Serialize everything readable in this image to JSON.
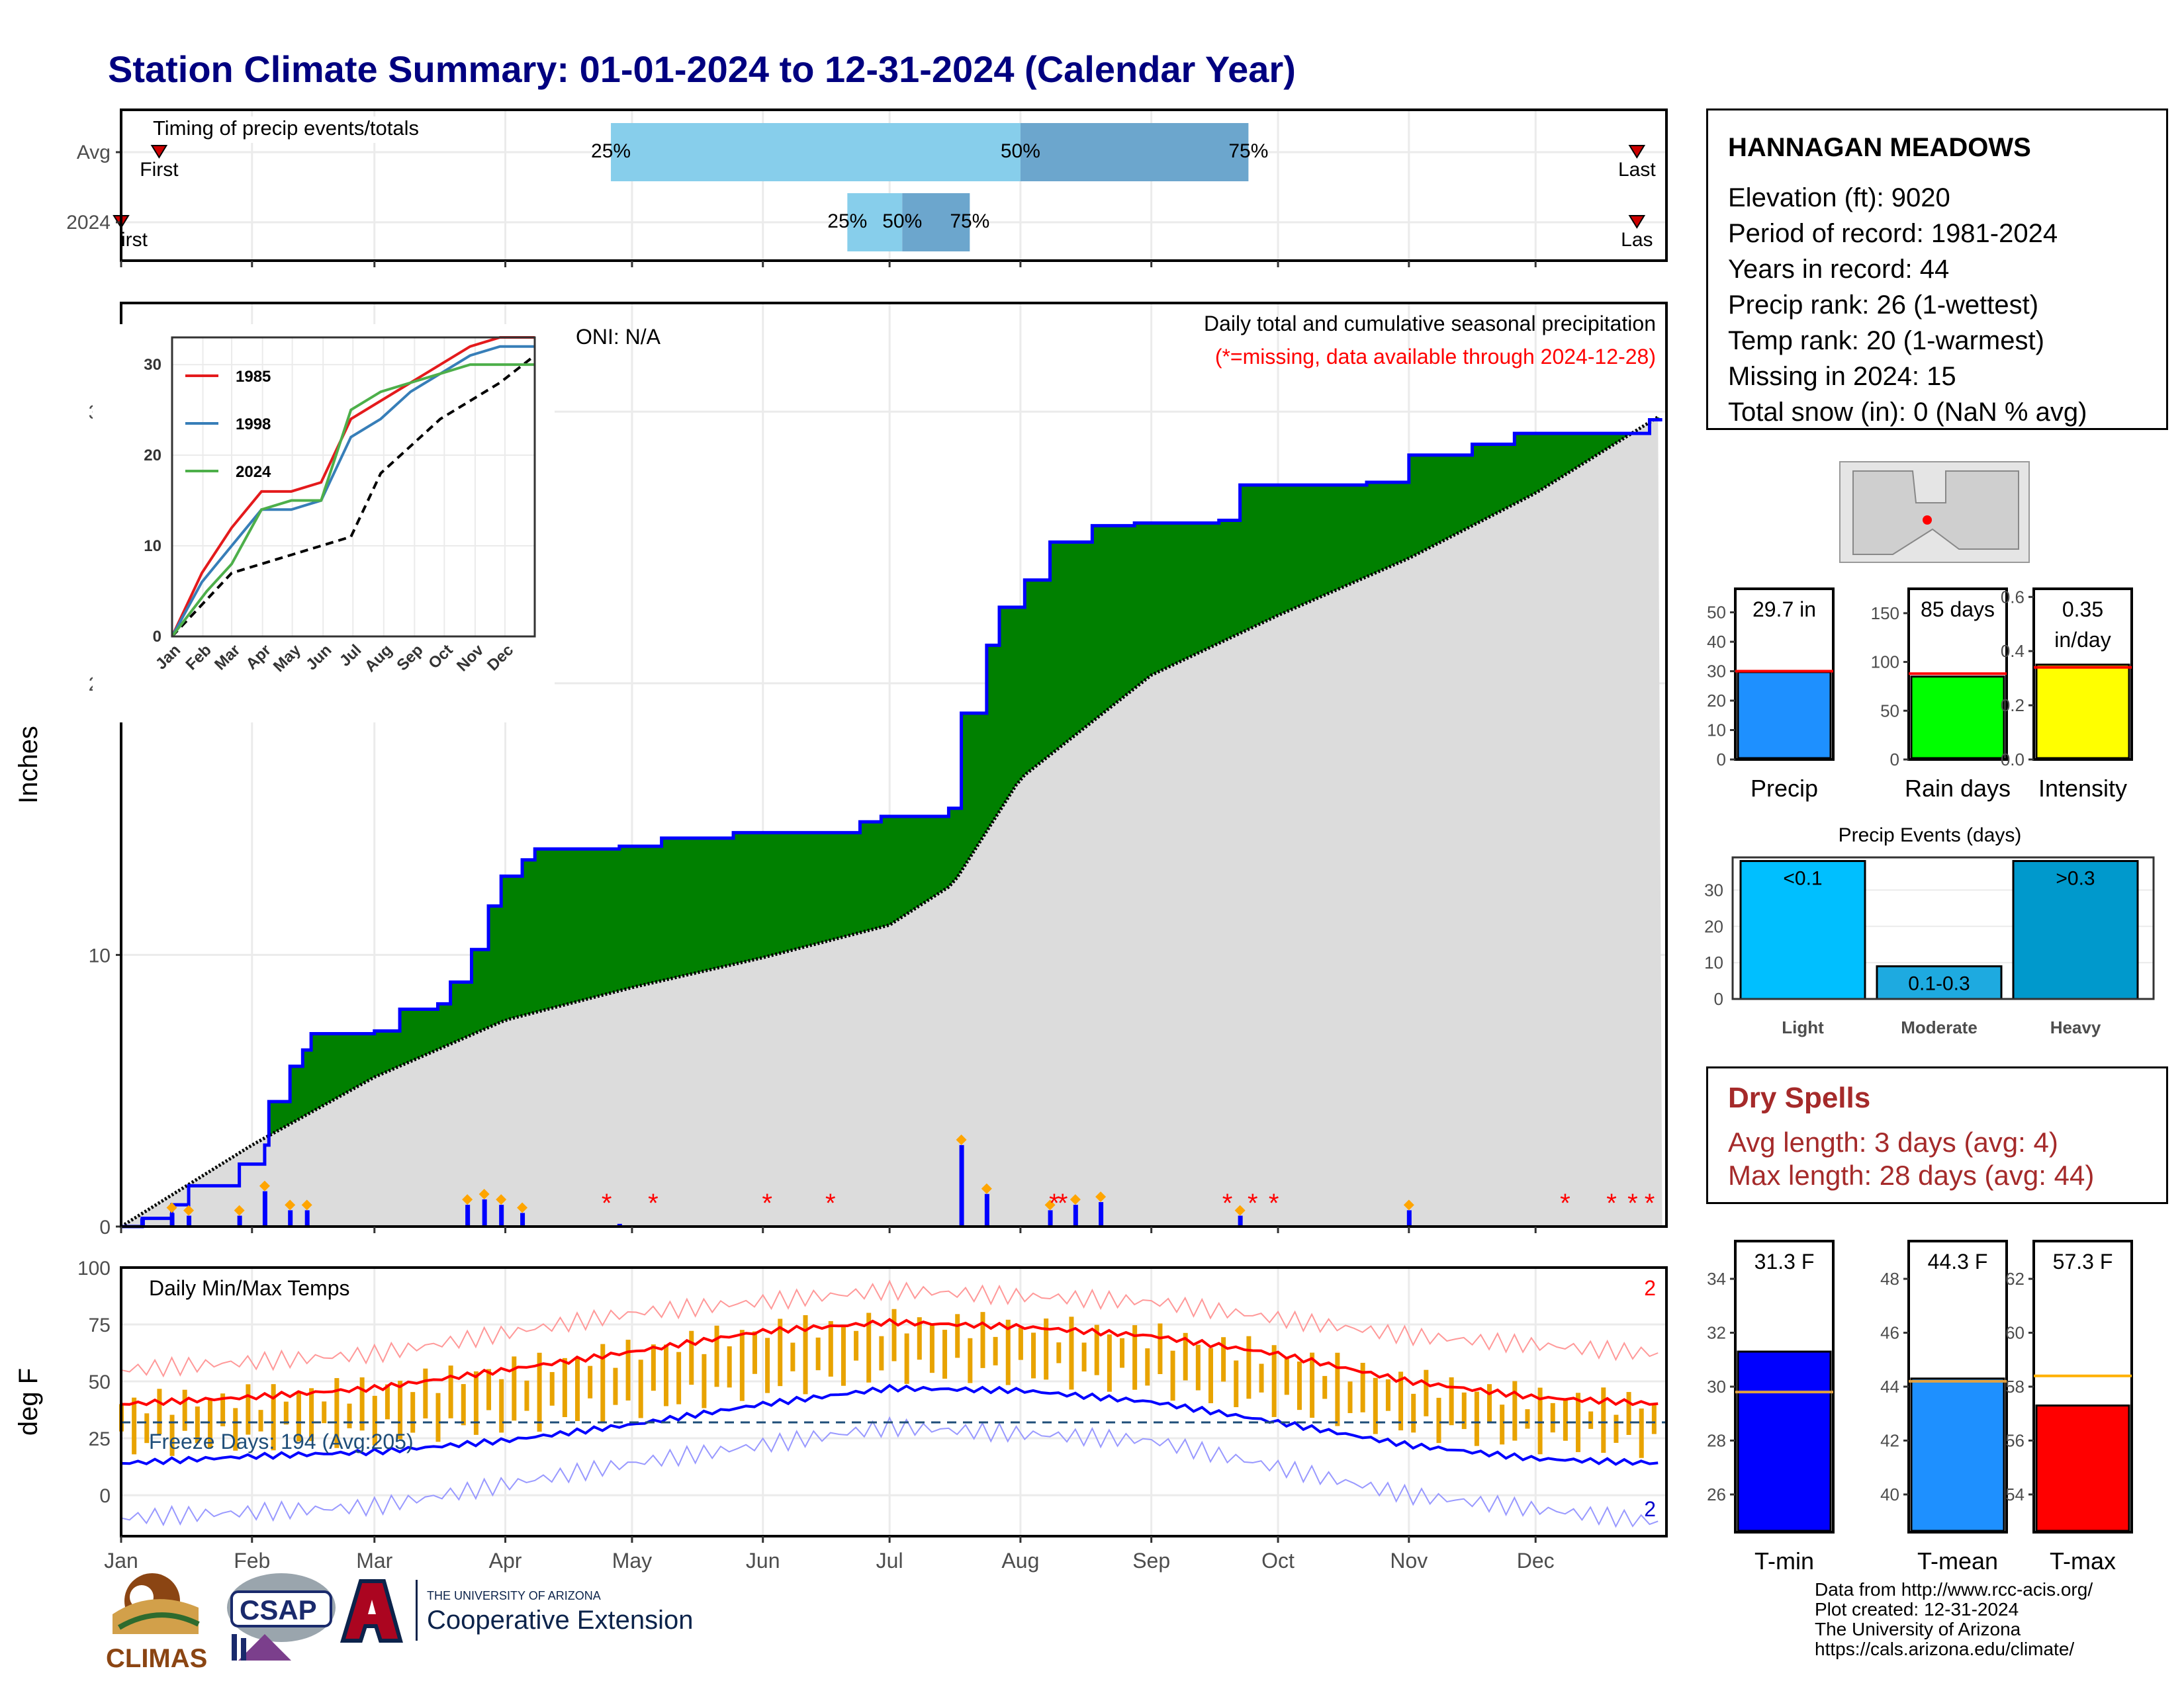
{
  "title": "Station Climate Summary: 01-01-2024 to 12-31-2024 (Calendar Year)",
  "station": {
    "name": "HANNAGAN MEADOWS",
    "lines": [
      "Elevation (ft): 9020",
      "Period of record: 1981-2024",
      "Years in record: 44",
      "Precip rank: 26 (1-wettest)",
      "Temp rank: 20 (1-warmest)",
      "Missing in 2024: 15",
      "Total snow (in): 0 (NaN % avg)"
    ]
  },
  "dry_spells": {
    "title": "Dry Spells",
    "avg": "Avg length: 3 days (avg: 4)",
    "max": "Max length: 28 days (avg: 44)"
  },
  "credits": [
    "Data from http://www.rcc-acis.org/",
    "Plot created: 12-31-2024",
    "The University of Arizona",
    "https://cals.arizona.edu/climate/"
  ],
  "logos": {
    "climas": "CLIMAS",
    "csap": "CSAP",
    "ua_small": "THE UNIVERSITY OF ARIZONA",
    "ua_big": "Cooperative Extension"
  },
  "colors": {
    "navy": "#000080",
    "green": "#008000",
    "blue": "#0000ff",
    "red": "#ff0000",
    "gold": "#e8a300",
    "light_blue": "#87ceeb",
    "mid_blue": "#6ca6cd"
  },
  "chart_data": [
    {
      "type": "bar",
      "id": "timing",
      "title": "Timing of precip events/totals",
      "categories": [
        "Avg",
        "2024"
      ],
      "rows": [
        {
          "label": "Avg",
          "first": "Jan 10",
          "p25": "Apr 26",
          "p50": "Aug 1",
          "p75": "Sep 24",
          "last": "Dec 25",
          "first_label": "First",
          "last_label": "Last",
          "p25_label": "25%",
          "p50_label": "50%",
          "p75_label": "75%"
        },
        {
          "label": "2024",
          "first": "Jan 1",
          "p25": "Jun 21",
          "p50": "Jul 4",
          "p75": "Jul 20",
          "last": "Dec 25",
          "first_label": "irst",
          "last_label": "Las",
          "p25_label": "25%",
          "p50_label": "50%",
          "p75_label": "75%"
        }
      ],
      "xlim": [
        "Jan 1",
        "Dec 31"
      ]
    },
    {
      "type": "area",
      "id": "precip",
      "title": "Daily total and cumulative seasonal precipitation",
      "subtitle": "(*=missing, data available through 2024-12-28)",
      "annotation": "ONI: N/A",
      "ylabel": "Inches",
      "ylim": [
        0,
        34
      ],
      "yticks": [
        0,
        10,
        20,
        30
      ],
      "x_ticks": [
        "Jan",
        "Feb",
        "Mar",
        "Apr",
        "May",
        "Jun",
        "Jul",
        "Aug",
        "Sep",
        "Oct",
        "Nov",
        "Dec"
      ],
      "cumulative_2024": [
        [
          0,
          0
        ],
        [
          5,
          0.3
        ],
        [
          12,
          0.8
        ],
        [
          16,
          1.5
        ],
        [
          28,
          2.3
        ],
        [
          34,
          3.0
        ],
        [
          35,
          4.6
        ],
        [
          40,
          5.9
        ],
        [
          43,
          6.5
        ],
        [
          45,
          7.1
        ],
        [
          60,
          7.2
        ],
        [
          66,
          8.0
        ],
        [
          75,
          8.2
        ],
        [
          78,
          9.0
        ],
        [
          83,
          10.2
        ],
        [
          87,
          11.8
        ],
        [
          90,
          12.9
        ],
        [
          95,
          13.5
        ],
        [
          98,
          13.9
        ],
        [
          118,
          14.0
        ],
        [
          128,
          14.3
        ],
        [
          145,
          14.5
        ],
        [
          170,
          14.5
        ],
        [
          175,
          14.9
        ],
        [
          180,
          15.1
        ],
        [
          196,
          15.4
        ],
        [
          199,
          18.9
        ],
        [
          205,
          21.4
        ],
        [
          208,
          22.8
        ],
        [
          214,
          23.8
        ],
        [
          220,
          25.2
        ],
        [
          230,
          25.8
        ],
        [
          240,
          25.9
        ],
        [
          260,
          26.0
        ],
        [
          265,
          27.3
        ],
        [
          295,
          27.4
        ],
        [
          305,
          28.4
        ],
        [
          320,
          28.8
        ],
        [
          330,
          29.2
        ],
        [
          362,
          29.7
        ]
      ],
      "cumulative_avg": [
        [
          0,
          0
        ],
        [
          31,
          3.0
        ],
        [
          60,
          5.5
        ],
        [
          91,
          7.6
        ],
        [
          121,
          8.8
        ],
        [
          152,
          9.9
        ],
        [
          182,
          11.1
        ],
        [
          197,
          12.6
        ],
        [
          213,
          16.5
        ],
        [
          244,
          20.3
        ],
        [
          274,
          22.5
        ],
        [
          305,
          24.6
        ],
        [
          335,
          27.0
        ],
        [
          365,
          29.9
        ]
      ],
      "daily_bars": [
        [
          5,
          0.3
        ],
        [
          12,
          0.5
        ],
        [
          16,
          0.4
        ],
        [
          28,
          0.4
        ],
        [
          34,
          1.3
        ],
        [
          40,
          0.6
        ],
        [
          44,
          0.6
        ],
        [
          82,
          0.8
        ],
        [
          86,
          1.0
        ],
        [
          90,
          0.8
        ],
        [
          95,
          0.5
        ],
        [
          118,
          0.1
        ],
        [
          199,
          3.0
        ],
        [
          205,
          1.2
        ],
        [
          220,
          0.6
        ],
        [
          226,
          0.8
        ],
        [
          232,
          0.9
        ],
        [
          265,
          0.4
        ],
        [
          305,
          0.6
        ]
      ],
      "missing_days": [
        115,
        126,
        153,
        168,
        221,
        223,
        262,
        268,
        273,
        342,
        353,
        358,
        362
      ]
    },
    {
      "type": "line",
      "id": "inset",
      "series": [
        {
          "name": "1985",
          "color": "#e41a1c",
          "points": [
            [
              0,
              0
            ],
            [
              30,
              7
            ],
            [
              60,
              12
            ],
            [
              90,
              16
            ],
            [
              120,
              16
            ],
            [
              150,
              17
            ],
            [
              180,
              24
            ],
            [
              210,
              26
            ],
            [
              240,
              28
            ],
            [
              270,
              30
            ],
            [
              300,
              32
            ],
            [
              330,
              33
            ],
            [
              365,
              33
            ]
          ]
        },
        {
          "name": "1998",
          "color": "#377eb8",
          "points": [
            [
              0,
              0
            ],
            [
              30,
              6
            ],
            [
              60,
              10
            ],
            [
              90,
              14
            ],
            [
              120,
              14
            ],
            [
              150,
              15
            ],
            [
              180,
              22
            ],
            [
              210,
              24
            ],
            [
              240,
              27
            ],
            [
              270,
              29
            ],
            [
              300,
              31
            ],
            [
              330,
              32
            ],
            [
              365,
              32
            ]
          ]
        },
        {
          "name": "2024",
          "color": "#4daf4a",
          "points": [
            [
              0,
              0
            ],
            [
              35,
              5
            ],
            [
              60,
              8
            ],
            [
              90,
              14
            ],
            [
              120,
              15
            ],
            [
              150,
              15
            ],
            [
              180,
              25
            ],
            [
              210,
              27
            ],
            [
              240,
              28
            ],
            [
              270,
              29
            ],
            [
              300,
              30
            ],
            [
              330,
              30
            ],
            [
              365,
              30
            ]
          ]
        }
      ],
      "average": [
        [
          0,
          0
        ],
        [
          60,
          7
        ],
        [
          120,
          9
        ],
        [
          180,
          11
        ],
        [
          210,
          18
        ],
        [
          270,
          24
        ],
        [
          330,
          28
        ],
        [
          365,
          31
        ]
      ],
      "ylim": [
        0,
        33
      ],
      "yticks": [
        0,
        10,
        20,
        30
      ],
      "x_ticks": [
        "Jan",
        "Feb",
        "Mar",
        "Apr",
        "May",
        "Jun",
        "Jul",
        "Aug",
        "Sep",
        "Oct",
        "Nov",
        "Dec"
      ]
    },
    {
      "type": "line",
      "id": "temps",
      "title": "Daily Min/Max Temps",
      "annotation": "Freeze Days: 194 (Avg:205)",
      "ylabel": "deg F",
      "ylim": [
        -18,
        100
      ],
      "yticks": [
        0,
        25,
        50,
        75,
        100
      ],
      "x_ticks": [
        "Jan",
        "Feb",
        "Mar",
        "Apr",
        "May",
        "Jun",
        "Jul",
        "Aug",
        "Sep",
        "Oct",
        "Nov",
        "Dec"
      ],
      "avg_max": [
        [
          0,
          40
        ],
        [
          30,
          43
        ],
        [
          60,
          47
        ],
        [
          91,
          55
        ],
        [
          121,
          63
        ],
        [
          152,
          72
        ],
        [
          182,
          76
        ],
        [
          213,
          74
        ],
        [
          244,
          70
        ],
        [
          274,
          62
        ],
        [
          305,
          50
        ],
        [
          335,
          43
        ],
        [
          365,
          40
        ]
      ],
      "avg_min": [
        [
          0,
          14
        ],
        [
          30,
          17
        ],
        [
          60,
          19
        ],
        [
          91,
          24
        ],
        [
          121,
          31
        ],
        [
          152,
          40
        ],
        [
          182,
          47
        ],
        [
          213,
          46
        ],
        [
          244,
          41
        ],
        [
          274,
          32
        ],
        [
          305,
          22
        ],
        [
          335,
          16
        ],
        [
          365,
          14
        ]
      ],
      "record_high": [
        [
          0,
          55
        ],
        [
          60,
          62
        ],
        [
          121,
          80
        ],
        [
          182,
          90
        ],
        [
          244,
          85
        ],
        [
          305,
          70
        ],
        [
          365,
          62
        ]
      ],
      "record_low": [
        [
          0,
          -10
        ],
        [
          60,
          -5
        ],
        [
          121,
          14
        ],
        [
          182,
          30
        ],
        [
          244,
          24
        ],
        [
          305,
          0
        ],
        [
          365,
          -12
        ]
      ],
      "freeze_line": 32,
      "corner_labels": [
        "2",
        "2"
      ]
    },
    {
      "type": "bar",
      "id": "totals",
      "panels": [
        {
          "label": "Precip",
          "value": 29.7,
          "text": "29.7 in",
          "avg": 30.0,
          "color": "#1e90ff",
          "ylim": [
            0,
            58
          ],
          "yticks": [
            0,
            10,
            20,
            30,
            40,
            50
          ]
        },
        {
          "label": "Rain days",
          "value": 85,
          "text": "85 days",
          "avg": 88,
          "color": "#00ff00",
          "ylim": [
            0,
            175
          ],
          "yticks": [
            0,
            50,
            100,
            150
          ]
        },
        {
          "label": "Intensity",
          "value": 0.35,
          "text": "0.35",
          "text2": "in/day",
          "avg": 0.34,
          "color": "#ffff00",
          "ylim": [
            0,
            0.63
          ],
          "yticks": [
            0.0,
            0.2,
            0.4,
            0.6
          ]
        }
      ]
    },
    {
      "type": "bar",
      "id": "events",
      "title": "Precip Events (days)",
      "categories": [
        "Light",
        "Moderate",
        "Heavy"
      ],
      "values": [
        38,
        9,
        38
      ],
      "bar_labels": [
        "<0.1",
        "0.1-0.3",
        ">0.3"
      ],
      "colors": [
        "#00bfff",
        "#1eaae0",
        "#0099cc"
      ],
      "ylim": [
        0,
        39
      ],
      "yticks": [
        0,
        10,
        20,
        30
      ]
    },
    {
      "type": "bar",
      "id": "temp_summary",
      "panels": [
        {
          "label": "T-min",
          "value": 31.3,
          "text": "31.3 F",
          "avg": 29.8,
          "color": "#0000ff",
          "ylim": [
            24.6,
            35.4
          ],
          "yticks": [
            26,
            28,
            30,
            32,
            34
          ]
        },
        {
          "label": "T-mean",
          "value": 44.3,
          "text": "44.3 F",
          "avg": 44.2,
          "color": "#1e90ff",
          "ylim": [
            38.6,
            49.4
          ],
          "yticks": [
            40,
            42,
            44,
            46,
            48
          ]
        },
        {
          "label": "T-max",
          "value": 57.3,
          "text": "57.3 F",
          "avg": 58.4,
          "color": "#ff0000",
          "ylim": [
            52.6,
            63.4
          ],
          "yticks": [
            54,
            56,
            58,
            60,
            62
          ]
        }
      ]
    }
  ]
}
